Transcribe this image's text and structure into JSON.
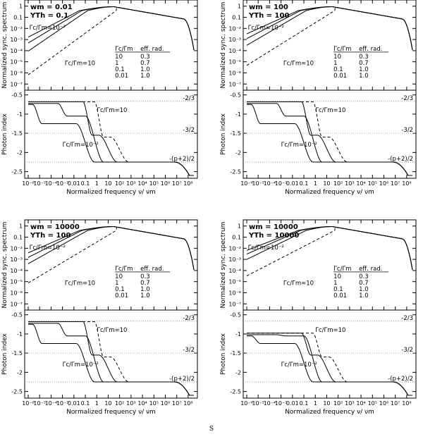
{
  "footer": "S",
  "colors": {
    "line": "#000000",
    "guide": "#888888"
  },
  "shared": {
    "top_ylabel": "Normalized sync. spectrum",
    "bottom_ylabel": "Photon index",
    "xlabel": "Normalized frequency ν/ νm",
    "top_yticks": [
      "1",
      "0.1",
      "10⁻²",
      "10⁻³",
      "10⁻⁴",
      "10⁻⁵",
      "10⁻⁶",
      "10⁻⁷"
    ],
    "bottom_yticks": [
      "-0.5",
      "-1",
      "-1.5",
      "-2",
      "-2.5"
    ],
    "xticks": [
      "10⁻⁶",
      "10⁻⁵",
      "10⁻⁴",
      "10⁻³",
      "0.01",
      "0.1",
      "1",
      "10",
      "10²",
      "10³",
      "10⁴",
      "10⁵",
      "10⁶",
      "10⁷",
      "10⁸"
    ],
    "guide_labels": [
      "-2/3",
      "-3/2",
      "-(p+2)/2"
    ],
    "curve_label_upper": "Γc/Γm=10",
    "curve_label_lower": "Γc/Γm=10⁻²",
    "table": {
      "headers": [
        "Γc/Γm",
        "eff. rad."
      ],
      "rows": [
        [
          "10",
          "0.3"
        ],
        [
          "1",
          "0.7"
        ],
        [
          "0.1",
          "1.0"
        ],
        [
          "0.01",
          "1.0"
        ]
      ]
    }
  },
  "chart_data": [
    {
      "type": "line",
      "title_w": "wm = 0.01",
      "title_y": "YTh = 0.1",
      "xlim_log10": [
        -6,
        8.5
      ],
      "guides": [
        -0.6667,
        -1.5,
        -2.25
      ],
      "series": [
        {
          "name": "10",
          "style": "dashed"
        },
        {
          "name": "1"
        },
        {
          "name": "0.1"
        },
        {
          "name": "0.01"
        }
      ]
    },
    {
      "type": "line",
      "title_w": "wm = 100",
      "title_y": "YTh = 100",
      "xlim_log10": [
        -6,
        8.5
      ],
      "guides": [
        -0.6667,
        -1.5,
        -2.25
      ],
      "series": [
        {
          "name": "10",
          "style": "dashed"
        },
        {
          "name": "1"
        },
        {
          "name": "0.1"
        },
        {
          "name": "0.01"
        }
      ]
    },
    {
      "type": "line",
      "title_w": "wm = 10000",
      "title_y": "YTh = 100",
      "xlim_log10": [
        -6,
        8.5
      ],
      "guides": [
        -0.6667,
        -1.5,
        -2.25
      ],
      "series": [
        {
          "name": "10",
          "style": "dashed"
        },
        {
          "name": "1"
        },
        {
          "name": "0.1"
        },
        {
          "name": "0.01"
        }
      ]
    },
    {
      "type": "line",
      "title_w": "wm = 10000",
      "title_y": "YTh = 10000",
      "xlim_log10": [
        -6,
        8.5
      ],
      "guides": [
        -0.6667,
        -1.5,
        -2.25
      ],
      "series": [
        {
          "name": "10",
          "style": "dashed"
        },
        {
          "name": "1"
        },
        {
          "name": "0.1"
        },
        {
          "name": "0.01"
        }
      ]
    }
  ]
}
